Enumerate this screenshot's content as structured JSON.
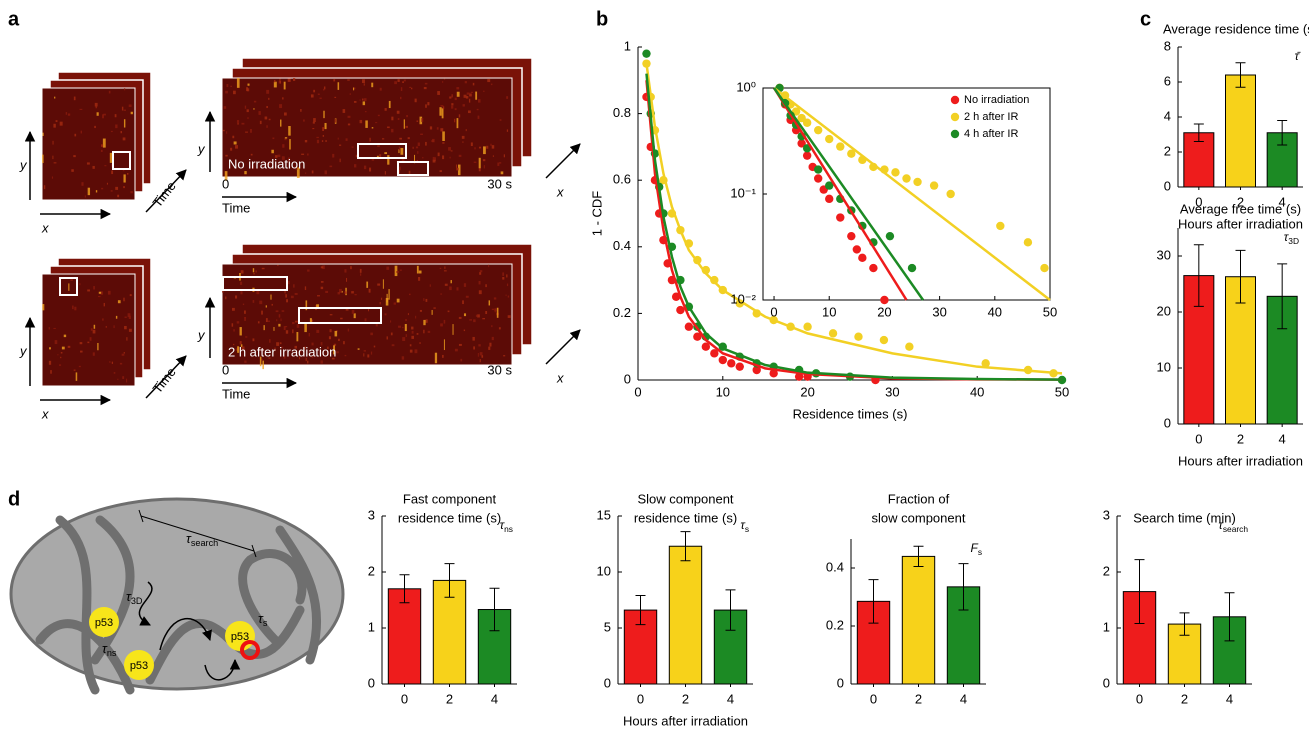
{
  "panel_labels": [
    "a",
    "b",
    "c",
    "d"
  ],
  "panel_a": {
    "axis_x": "x",
    "axis_y": "y",
    "time": "Time",
    "rows": [
      {
        "condition": "No irradiation",
        "t_start": "0",
        "t_end": "30 s"
      },
      {
        "condition": "2 h after irradiation",
        "t_start": "0",
        "t_end": "30 s"
      }
    ]
  },
  "panel_d_diagram": {
    "protein": "p53",
    "tau_3d": {
      "symbol": "τ",
      "sub": "3D"
    },
    "tau_ns": {
      "symbol": "τ",
      "sub": "ns"
    },
    "tau_search": {
      "symbol": "τ",
      "sub": "search"
    },
    "tau_s": {
      "symbol": "τ",
      "sub": "s"
    }
  },
  "chart_data": [
    {
      "type": "scatter",
      "xlabel": "Residence times (s)",
      "ylabel": "1 - CDF",
      "xlim": [
        0,
        50
      ],
      "ylim": [
        0,
        1
      ],
      "xticks": [
        0,
        10,
        20,
        30,
        40,
        50
      ],
      "yticks": [
        0,
        0.2,
        0.4,
        0.6,
        0.8,
        1
      ],
      "grid": false,
      "series": [
        {
          "name": "No irradiation",
          "color": "#ee1c1c",
          "x": [
            1,
            1.5,
            2,
            2.5,
            3,
            3.5,
            4,
            4.5,
            5,
            6,
            7,
            8,
            9,
            10,
            11,
            12,
            14,
            16,
            19,
            20,
            28
          ],
          "values": [
            0.85,
            0.7,
            0.6,
            0.5,
            0.42,
            0.35,
            0.3,
            0.25,
            0.21,
            0.16,
            0.13,
            0.1,
            0.08,
            0.06,
            0.05,
            0.04,
            0.03,
            0.02,
            0.01,
            0.01,
            0
          ],
          "fit_x": [
            1,
            2,
            3,
            4,
            5,
            6,
            8,
            10,
            15,
            20,
            30,
            40,
            50
          ],
          "fit_values": [
            0.9,
            0.62,
            0.45,
            0.33,
            0.25,
            0.19,
            0.12,
            0.08,
            0.035,
            0.018,
            0.005,
            0.002,
            0.001
          ]
        },
        {
          "name": "2 h after IR",
          "color": "#f2d024",
          "x": [
            1,
            1.5,
            2,
            3,
            4,
            5,
            6,
            7,
            8,
            9,
            10,
            12,
            14,
            16,
            18,
            20,
            23,
            26,
            29,
            32,
            41,
            46,
            49
          ],
          "values": [
            0.95,
            0.85,
            0.75,
            0.6,
            0.5,
            0.45,
            0.41,
            0.36,
            0.33,
            0.3,
            0.27,
            0.23,
            0.2,
            0.18,
            0.16,
            0.16,
            0.14,
            0.13,
            0.12,
            0.1,
            0.05,
            0.03,
            0.02
          ],
          "fit_x": [
            1,
            2,
            3,
            4,
            5,
            6,
            8,
            10,
            15,
            20,
            30,
            40,
            50
          ],
          "fit_values": [
            0.95,
            0.76,
            0.62,
            0.52,
            0.45,
            0.39,
            0.32,
            0.27,
            0.19,
            0.14,
            0.08,
            0.04,
            0.02
          ]
        },
        {
          "name": "4 h after IR",
          "color": "#1c8a24",
          "x": [
            1,
            1.5,
            2,
            2.5,
            3,
            4,
            5,
            6,
            7,
            8,
            10,
            12,
            14,
            16,
            19,
            21,
            25,
            50
          ],
          "values": [
            0.98,
            0.8,
            0.68,
            0.58,
            0.5,
            0.4,
            0.3,
            0.22,
            0.16,
            0.13,
            0.1,
            0.07,
            0.05,
            0.04,
            0.03,
            0.02,
            0.01,
            0
          ],
          "fit_x": [
            1,
            2,
            3,
            4,
            5,
            6,
            8,
            10,
            15,
            20,
            30,
            40,
            50
          ],
          "fit_values": [
            0.92,
            0.66,
            0.49,
            0.37,
            0.28,
            0.22,
            0.14,
            0.095,
            0.045,
            0.022,
            0.007,
            0.003,
            0.001
          ]
        }
      ]
    },
    {
      "type": "scatter",
      "log_y": true,
      "legend": "upper right",
      "xlim": [
        -2,
        50
      ],
      "ylim": [
        0.01,
        1
      ],
      "xticks": [
        0,
        10,
        20,
        30,
        40,
        50
      ],
      "yticks": [
        {
          "value": 1,
          "label": "10⁰"
        },
        {
          "value": 0.1,
          "label": "10⁻¹"
        },
        {
          "value": 0.01,
          "label": "10⁻²"
        }
      ],
      "series": [
        {
          "name": "No irradiation",
          "color": "#ee1c1c",
          "x": [
            1,
            2,
            3,
            4,
            5,
            6,
            7,
            8,
            9,
            10,
            12,
            14,
            15,
            16,
            18,
            20
          ],
          "values": [
            1,
            0.7,
            0.5,
            0.4,
            0.3,
            0.23,
            0.18,
            0.14,
            0.11,
            0.09,
            0.06,
            0.04,
            0.03,
            0.025,
            0.02,
            0.01
          ],
          "fit_x": [
            0,
            24
          ],
          "fit_values": [
            1,
            0.01
          ]
        },
        {
          "name": "2 h after IR",
          "color": "#f2d024",
          "x": [
            1,
            2,
            3,
            4,
            5,
            6,
            8,
            10,
            12,
            14,
            16,
            18,
            20,
            22,
            24,
            26,
            29,
            32,
            41,
            46,
            49
          ],
          "values": [
            1,
            0.85,
            0.7,
            0.6,
            0.52,
            0.47,
            0.4,
            0.33,
            0.28,
            0.24,
            0.21,
            0.18,
            0.17,
            0.16,
            0.14,
            0.13,
            0.12,
            0.1,
            0.05,
            0.035,
            0.02
          ],
          "fit_x": [
            0,
            50
          ],
          "fit_values": [
            1,
            0.01
          ]
        },
        {
          "name": "4 h after IR",
          "color": "#1c8a24",
          "x": [
            1,
            2,
            3,
            4,
            5,
            6,
            8,
            10,
            12,
            14,
            16,
            18,
            21,
            25
          ],
          "values": [
            1,
            0.72,
            0.55,
            0.45,
            0.35,
            0.27,
            0.17,
            0.12,
            0.09,
            0.07,
            0.05,
            0.035,
            0.04,
            0.02
          ],
          "fit_x": [
            0,
            27
          ],
          "fit_values": [
            1,
            0.01
          ]
        }
      ]
    },
    {
      "type": "bar",
      "title": [
        "Average residence time (s)"
      ],
      "annotation": {
        "symbol": "τ̄"
      },
      "xlabel": "Hours after irradiation",
      "categories": [
        "0",
        "2",
        "4"
      ],
      "values": [
        3.1,
        6.4,
        3.1
      ],
      "errors": [
        0.5,
        0.7,
        0.7
      ],
      "colors": [
        "#ee1c1c",
        "#f7d21a",
        "#1c8a24"
      ],
      "ylim": [
        0,
        8
      ],
      "yticks": [
        0,
        2,
        4,
        6,
        8
      ]
    },
    {
      "type": "bar",
      "title": [
        "Average free time (s)"
      ],
      "annotation": {
        "symbol": "τ",
        "sub": "3D"
      },
      "xlabel": "Hours after irradiation",
      "categories": [
        "0",
        "2",
        "4"
      ],
      "values": [
        26.5,
        26.3,
        22.8
      ],
      "errors": [
        5.5,
        4.7,
        5.8
      ],
      "colors": [
        "#ee1c1c",
        "#f7d21a",
        "#1c8a24"
      ],
      "ylim": [
        0,
        35
      ],
      "yticks": [
        0,
        10,
        20,
        30
      ]
    },
    {
      "type": "bar",
      "title": [
        "Fast component",
        "residence time (s)"
      ],
      "annotation": {
        "symbol": "τ",
        "sub": "ns"
      },
      "categories": [
        "0",
        "2",
        "4"
      ],
      "values": [
        1.7,
        1.85,
        1.33
      ],
      "errors": [
        0.25,
        0.3,
        0.38
      ],
      "colors": [
        "#ee1c1c",
        "#f7d21a",
        "#1c8a24"
      ],
      "ylim": [
        0,
        3
      ],
      "yticks": [
        0,
        1,
        2,
        3
      ]
    },
    {
      "type": "bar",
      "title": [
        "Slow component",
        "residence time (s)"
      ],
      "annotation": {
        "symbol": "τ",
        "sub": "s"
      },
      "xlabel": "Hours after irradiation",
      "categories": [
        "0",
        "2",
        "4"
      ],
      "values": [
        6.6,
        12.3,
        6.6
      ],
      "errors": [
        1.3,
        1.3,
        1.8
      ],
      "colors": [
        "#ee1c1c",
        "#f7d21a",
        "#1c8a24"
      ],
      "ylim": [
        0,
        15
      ],
      "yticks": [
        0,
        5,
        10,
        15
      ]
    },
    {
      "type": "bar",
      "title": [
        "Fraction of",
        "slow component"
      ],
      "annotation": {
        "symbol": "F",
        "sub": "s"
      },
      "categories": [
        "0",
        "2",
        "4"
      ],
      "values": [
        0.285,
        0.44,
        0.335
      ],
      "errors": [
        0.075,
        0.035,
        0.08
      ],
      "colors": [
        "#ee1c1c",
        "#f7d21a",
        "#1c8a24"
      ],
      "ylim": [
        0,
        0.5
      ],
      "yticks": [
        0,
        0.2,
        0.4
      ]
    },
    {
      "type": "bar",
      "title": [
        "Search time (min)"
      ],
      "annotation": {
        "symbol": "τ",
        "sub": "search"
      },
      "categories": [
        "0",
        "2",
        "4"
      ],
      "values": [
        1.65,
        1.07,
        1.2
      ],
      "errors": [
        0.57,
        0.2,
        0.43
      ],
      "colors": [
        "#ee1c1c",
        "#f7d21a",
        "#1c8a24"
      ],
      "ylim": [
        0,
        3
      ],
      "yticks": [
        0,
        1,
        2,
        3
      ]
    }
  ]
}
